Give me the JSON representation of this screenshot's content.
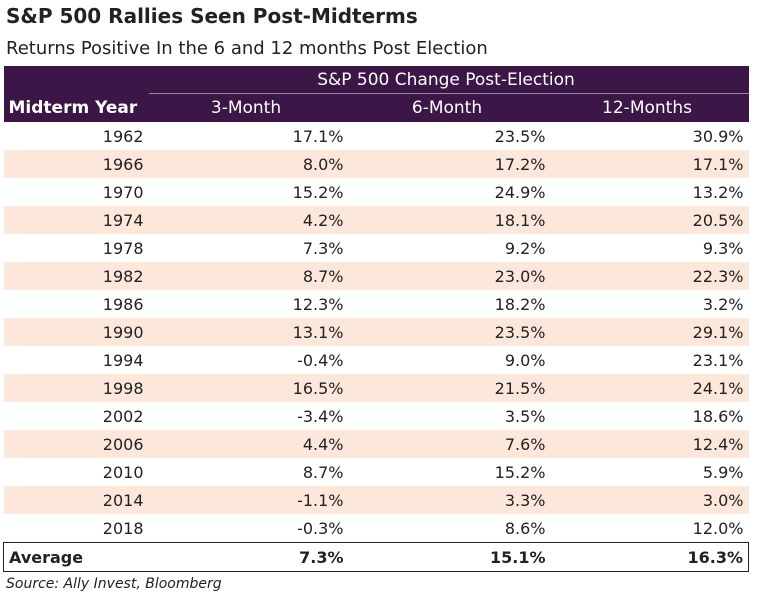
{
  "header": {
    "title": "S&P 500 Rallies Seen Post-Midterms",
    "subtitle": "Returns Positive In the 6 and 12 months Post Election"
  },
  "table": {
    "group_header": "S&P 500 Change Post-Election",
    "columns": [
      "Midterm Year",
      "3-Month",
      "6-Month",
      "12-Months"
    ],
    "rows": [
      [
        "1962",
        "17.1%",
        "23.5%",
        "30.9%"
      ],
      [
        "1966",
        "8.0%",
        "17.2%",
        "17.1%"
      ],
      [
        "1970",
        "15.2%",
        "24.9%",
        "13.2%"
      ],
      [
        "1974",
        "4.2%",
        "18.1%",
        "20.5%"
      ],
      [
        "1978",
        "7.3%",
        "9.2%",
        "9.3%"
      ],
      [
        "1982",
        "8.7%",
        "23.0%",
        "22.3%"
      ],
      [
        "1986",
        "12.3%",
        "18.2%",
        "3.2%"
      ],
      [
        "1990",
        "13.1%",
        "23.5%",
        "29.1%"
      ],
      [
        "1994",
        "-0.4%",
        "9.0%",
        "23.1%"
      ],
      [
        "1998",
        "16.5%",
        "21.5%",
        "24.1%"
      ],
      [
        "2002",
        "-3.4%",
        "3.5%",
        "18.6%"
      ],
      [
        "2006",
        "4.4%",
        "7.6%",
        "12.4%"
      ],
      [
        "2010",
        "8.7%",
        "15.2%",
        "5.9%"
      ],
      [
        "2014",
        "-1.1%",
        "3.3%",
        "3.0%"
      ],
      [
        "2018",
        "-0.3%",
        "8.6%",
        "12.0%"
      ]
    ],
    "average": [
      "Average",
      "7.3%",
      "15.1%",
      "16.3%"
    ]
  },
  "source": "Source: Ally Invest, Bloomberg"
}
